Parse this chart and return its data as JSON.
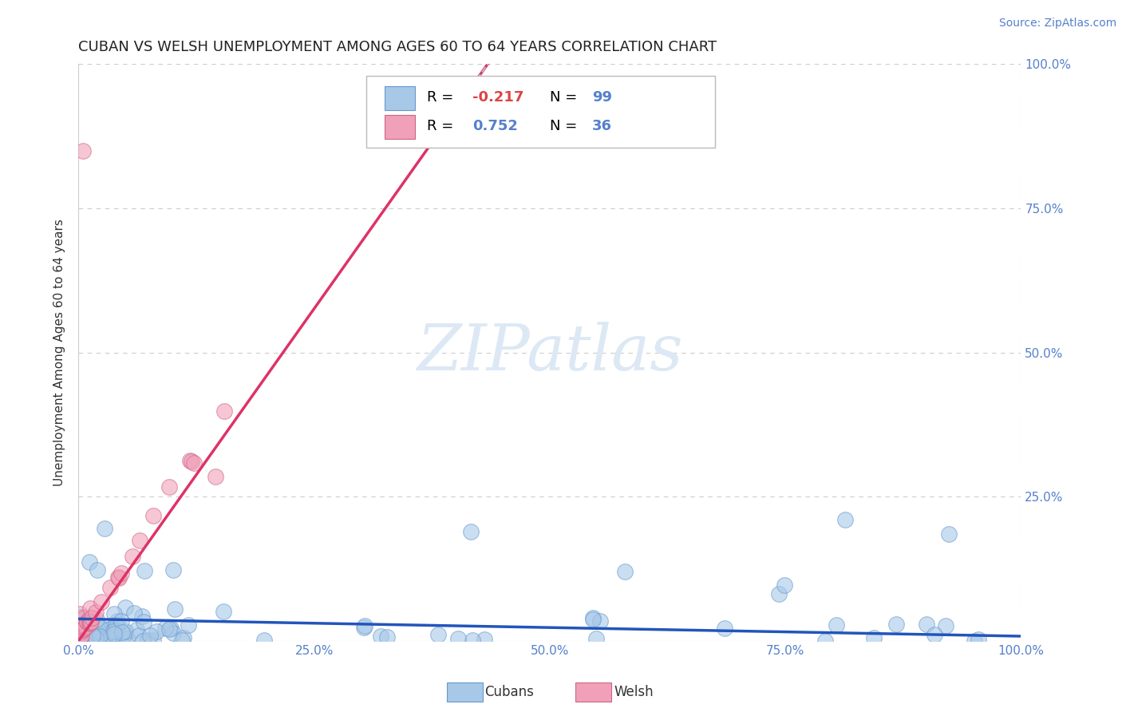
{
  "title": "CUBAN VS WELSH UNEMPLOYMENT AMONG AGES 60 TO 64 YEARS CORRELATION CHART",
  "source": "Source: ZipAtlas.com",
  "ylabel": "Unemployment Among Ages 60 to 64 years",
  "xlim": [
    0.0,
    1.0
  ],
  "ylim": [
    0.0,
    1.0
  ],
  "xticklabels": [
    "0.0%",
    "25.0%",
    "50.0%",
    "75.0%",
    "100.0%"
  ],
  "yticklabels_right": [
    "",
    "25.0%",
    "50.0%",
    "75.0%",
    "100.0%"
  ],
  "cubans_R": -0.217,
  "cubans_N": 99,
  "welsh_R": 0.752,
  "welsh_N": 36,
  "cubans_color": "#a8c8e8",
  "welsh_color": "#f0a0b8",
  "cubans_line_color": "#2255bb",
  "welsh_line_color": "#dd3366",
  "dash_color": "#bbbbbb",
  "watermark_color": "#dde8f5",
  "background_color": "#ffffff",
  "grid_color": "#cccccc",
  "tick_color": "#5580cc"
}
